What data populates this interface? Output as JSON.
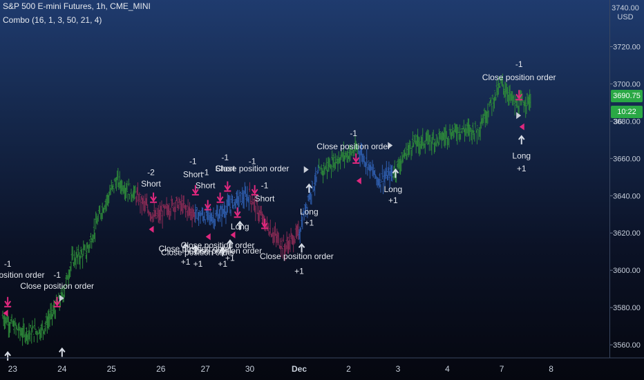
{
  "header": {
    "symbol_line": "S&P 500 E-mini Futures, 1h, CME_MINI",
    "indicator_line": "Combo (16, 1, 3, 50, 21, 4)"
  },
  "price_axis": {
    "currency": "USD",
    "currency_sub": "3740.00",
    "last_price": "3690.75",
    "time_tag": "10:22",
    "price_partial": "36"
  },
  "chart_data": {
    "type": "candlestick",
    "title": "S&P 500 E-mini Futures, 1h, CME_MINI",
    "indicator": "Combo (16, 1, 3, 50, 21, 4)",
    "ylim": [
      3553,
      3745
    ],
    "y_ticks": [
      3560,
      3580,
      3600,
      3620,
      3640,
      3660,
      3680,
      3700,
      3720
    ],
    "y_tick_labels": [
      "3560.00",
      "3580.00",
      "3600.00",
      "3620.00",
      "3640.00",
      "3660.00",
      "3680.00",
      "3700.00",
      "3720.00"
    ],
    "x_ticks": [
      {
        "label": "23",
        "bar": 2
      },
      {
        "label": "24",
        "bar": 12
      },
      {
        "label": "25",
        "bar": 22
      },
      {
        "label": "26",
        "bar": 32
      },
      {
        "label": "27",
        "bar": 41
      },
      {
        "label": "30",
        "bar": 50
      },
      {
        "label": "Dec",
        "bar": 60
      },
      {
        "label": "2",
        "bar": 70
      },
      {
        "label": "3",
        "bar": 80
      },
      {
        "label": "4",
        "bar": 90
      },
      {
        "label": "7",
        "bar": 101
      },
      {
        "label": "8",
        "bar": 111
      }
    ],
    "segments": [
      {
        "color": "#2e8b3a",
        "points": [
          [
            0,
            3575
          ],
          [
            4,
            3566
          ],
          [
            8,
            3568
          ],
          [
            12,
            3585
          ],
          [
            14,
            3605
          ],
          [
            17,
            3610
          ],
          [
            20,
            3632
          ],
          [
            23,
            3648
          ],
          [
            27,
            3640
          ]
        ]
      },
      {
        "color": "#8a2b55",
        "points": [
          [
            27,
            3640
          ],
          [
            31,
            3628
          ],
          [
            35,
            3636
          ],
          [
            39,
            3630
          ]
        ]
      },
      {
        "color": "#2f5fb0",
        "points": [
          [
            39,
            3630
          ],
          [
            43,
            3628
          ],
          [
            47,
            3637
          ],
          [
            50,
            3640
          ]
        ]
      },
      {
        "color": "#8a2b55",
        "points": [
          [
            50,
            3640
          ],
          [
            53,
            3625
          ],
          [
            57,
            3612
          ],
          [
            60,
            3620
          ]
        ]
      },
      {
        "color": "#2f5fb0",
        "points": [
          [
            60,
            3620
          ],
          [
            62,
            3640
          ],
          [
            64,
            3652
          ]
        ]
      },
      {
        "color": "#2e8b3a",
        "points": [
          [
            64,
            3652
          ],
          [
            68,
            3660
          ],
          [
            72,
            3665
          ]
        ]
      },
      {
        "color": "#2f5fb0",
        "points": [
          [
            72,
            3665
          ],
          [
            76,
            3648
          ],
          [
            79,
            3652
          ]
        ]
      },
      {
        "color": "#2e8b3a",
        "points": [
          [
            79,
            3652
          ],
          [
            83,
            3668
          ],
          [
            88,
            3670
          ],
          [
            92,
            3675
          ],
          [
            96,
            3675
          ],
          [
            99,
            3690
          ],
          [
            101,
            3700
          ],
          [
            104,
            3688
          ],
          [
            107,
            3692
          ]
        ]
      }
    ],
    "annotations": [
      {
        "text": "-1",
        "x": 1,
        "y": 3602
      },
      {
        "text": "Close position order",
        "x": 1,
        "y": 3596
      },
      {
        "text": "-1",
        "x": 11,
        "y": 3596
      },
      {
        "text": "Close position order",
        "x": 11,
        "y": 3590
      },
      {
        "text": "-2",
        "x": 30,
        "y": 3651
      },
      {
        "text": "Short",
        "x": 30,
        "y": 3645
      },
      {
        "text": "-1",
        "x": 38.5,
        "y": 3657
      },
      {
        "text": "Short",
        "x": 38.5,
        "y": 3650
      },
      {
        "text": "-1",
        "x": 41,
        "y": 3651
      },
      {
        "text": "Short",
        "x": 41,
        "y": 3644
      },
      {
        "text": "-1",
        "x": 45,
        "y": 3659
      },
      {
        "text": "Short",
        "x": 45,
        "y": 3653
      },
      {
        "text": "-1",
        "x": 50.5,
        "y": 3657
      },
      {
        "text": "Close position order",
        "x": 50.5,
        "y": 3653
      },
      {
        "text": "-1",
        "x": 53,
        "y": 3644
      },
      {
        "text": "Short",
        "x": 53,
        "y": 3637
      },
      {
        "text": "Long",
        "x": 48,
        "y": 3622
      },
      {
        "text": "Close position order",
        "x": 43.5,
        "y": 3612
      },
      {
        "text": "Close position order",
        "x": 39,
        "y": 3610
      },
      {
        "text": "Close position order",
        "x": 45,
        "y": 3609
      },
      {
        "text": "Close position order",
        "x": 59.5,
        "y": 3606
      },
      {
        "text": "Close position order",
        "x": 39.5,
        "y": 3608
      },
      {
        "text": "+1",
        "x": 37,
        "y": 3603
      },
      {
        "text": "+1",
        "x": 39.5,
        "y": 3602
      },
      {
        "text": "+1",
        "x": 44.5,
        "y": 3602
      },
      {
        "text": "+1",
        "x": 46,
        "y": 3605
      },
      {
        "text": "+1",
        "x": 60,
        "y": 3598
      },
      {
        "text": "Long",
        "x": 62,
        "y": 3630
      },
      {
        "text": "+1",
        "x": 62,
        "y": 3624
      },
      {
        "text": "-1",
        "x": 71,
        "y": 3672
      },
      {
        "text": "Close position order",
        "x": 71,
        "y": 3665
      },
      {
        "text": "Long",
        "x": 79,
        "y": 3642
      },
      {
        "text": "+1",
        "x": 79,
        "y": 3636
      },
      {
        "text": "-1",
        "x": 104.5,
        "y": 3709
      },
      {
        "text": "Close position order",
        "x": 104.5,
        "y": 3702
      },
      {
        "text": "Long",
        "x": 105,
        "y": 3660
      },
      {
        "text": "+1",
        "x": 105,
        "y": 3653
      }
    ],
    "markers": [
      {
        "kind": "down",
        "x": 1,
        "y": 3582
      },
      {
        "kind": "down",
        "x": 11,
        "y": 3582
      },
      {
        "kind": "up",
        "x": 1,
        "y": 3556
      },
      {
        "kind": "up",
        "x": 12,
        "y": 3558
      },
      {
        "kind": "down",
        "x": 30.5,
        "y": 3638
      },
      {
        "kind": "down",
        "x": 39,
        "y": 3642
      },
      {
        "kind": "down",
        "x": 41.5,
        "y": 3634
      },
      {
        "kind": "down",
        "x": 44,
        "y": 3638
      },
      {
        "kind": "down",
        "x": 45.5,
        "y": 3644
      },
      {
        "kind": "down",
        "x": 47.5,
        "y": 3630
      },
      {
        "kind": "down",
        "x": 51,
        "y": 3642
      },
      {
        "kind": "down",
        "x": 53,
        "y": 3624
      },
      {
        "kind": "down",
        "x": 71.5,
        "y": 3659
      },
      {
        "kind": "down",
        "x": 104.5,
        "y": 3693
      },
      {
        "kind": "up",
        "x": 37,
        "y": 3614
      },
      {
        "kind": "up",
        "x": 39,
        "y": 3613
      },
      {
        "kind": "up",
        "x": 44.5,
        "y": 3612
      },
      {
        "kind": "up",
        "x": 46,
        "y": 3616
      },
      {
        "kind": "up",
        "x": 48,
        "y": 3626
      },
      {
        "kind": "up",
        "x": 60.5,
        "y": 3614
      },
      {
        "kind": "up",
        "x": 62,
        "y": 3646
      },
      {
        "kind": "up",
        "x": 79.5,
        "y": 3654
      },
      {
        "kind": "up",
        "x": 105,
        "y": 3672
      },
      {
        "kind": "flag-l",
        "x": 0.5,
        "y": 3577
      },
      {
        "kind": "flag-r",
        "x": 12,
        "y": 3585
      },
      {
        "kind": "flag-l",
        "x": 30,
        "y": 3622
      },
      {
        "kind": "flag-l",
        "x": 41.5,
        "y": 3618
      },
      {
        "kind": "flag-l",
        "x": 46.5,
        "y": 3619
      },
      {
        "kind": "flag-r",
        "x": 61.5,
        "y": 3654
      },
      {
        "kind": "flag-l",
        "x": 72,
        "y": 3648
      },
      {
        "kind": "flag-r",
        "x": 78.5,
        "y": 3667
      },
      {
        "kind": "flag-r",
        "x": 104.5,
        "y": 3683
      },
      {
        "kind": "flag-l",
        "x": 105,
        "y": 3677
      }
    ]
  }
}
